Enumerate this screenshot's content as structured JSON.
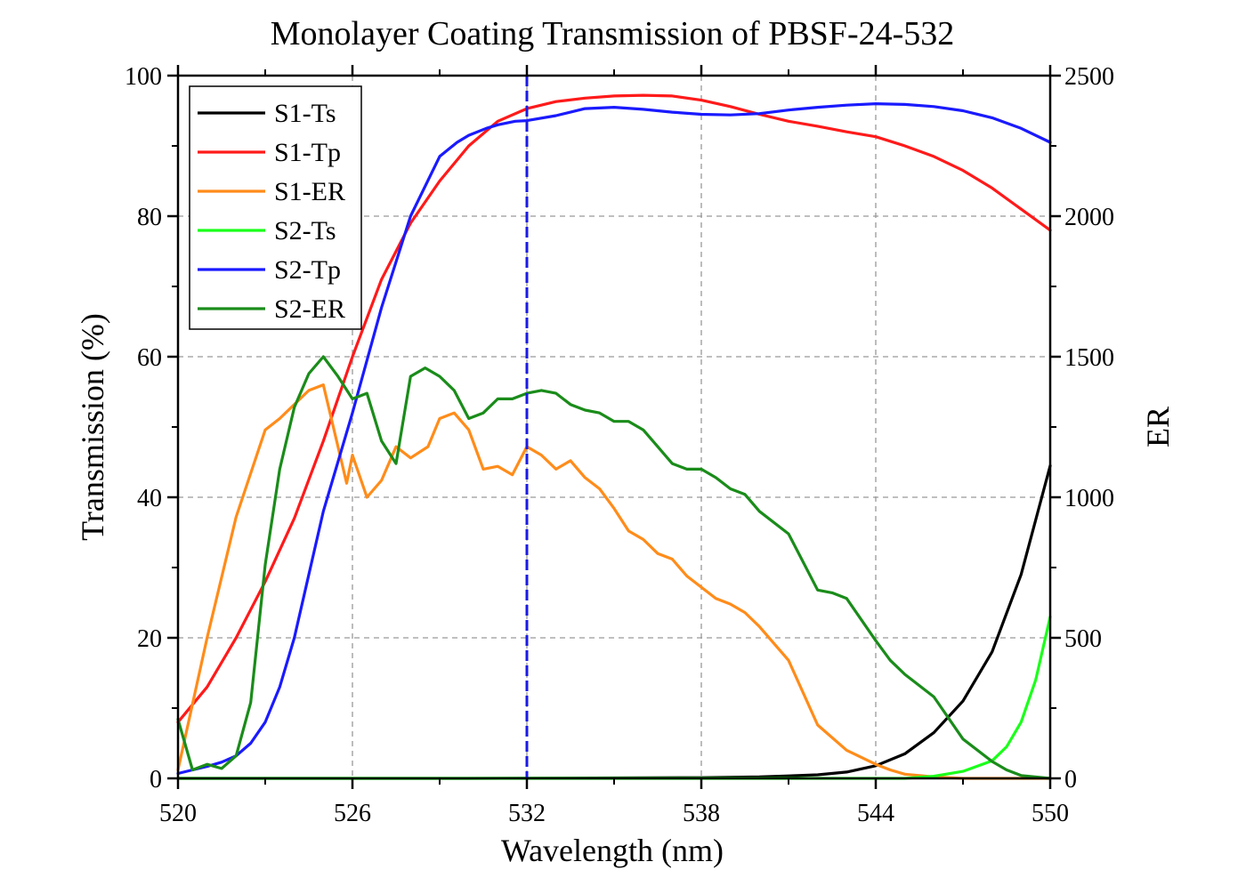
{
  "chart_data": {
    "type": "line",
    "title": "Monolayer Coating Transmission of PBSF-24-532",
    "xlabel": "Wavelength (nm)",
    "ylabel": "Transmission (%)",
    "y2label": "ER",
    "xlim": [
      520,
      550
    ],
    "ylim": [
      0,
      100
    ],
    "y2lim": [
      0,
      2500
    ],
    "xticks": [
      "520",
      "526",
      "532",
      "538",
      "544",
      "550"
    ],
    "yticks": [
      "0",
      "20",
      "40",
      "60",
      "80",
      "100"
    ],
    "y2ticks": [
      "0",
      "500",
      "1000",
      "1500",
      "2000",
      "2500"
    ],
    "grid": true,
    "legend_position": "top-left",
    "vline_x": 532,
    "vline_color": "#1a1ae6",
    "series": [
      {
        "name": "S1-Ts",
        "axis": "left",
        "color": "#000000",
        "x": [
          520,
          530,
          538,
          540,
          542,
          543,
          544,
          545,
          546,
          547,
          548,
          549,
          550
        ],
        "y": [
          0,
          0,
          0.1,
          0.2,
          0.5,
          0.9,
          1.8,
          3.5,
          6.5,
          11,
          18,
          29,
          44.5
        ]
      },
      {
        "name": "S1-Tp",
        "axis": "left",
        "color": "#ff1a1a",
        "x": [
          520,
          521,
          522,
          523,
          524,
          525,
          526,
          527,
          528,
          529,
          530,
          531,
          532,
          533,
          534,
          535,
          536,
          537,
          538,
          539,
          540,
          541,
          542,
          543,
          544,
          545,
          546,
          547,
          548,
          549,
          550
        ],
        "y": [
          8,
          13,
          20,
          28,
          37,
          48,
          60,
          71,
          79,
          85,
          90,
          93.5,
          95.3,
          96.3,
          96.8,
          97.1,
          97.2,
          97.1,
          96.5,
          95.6,
          94.5,
          93.5,
          92.8,
          92,
          91.3,
          90,
          88.5,
          86.5,
          84,
          81,
          78
        ]
      },
      {
        "name": "S1-ER",
        "axis": "right",
        "color": "#ff8c1a",
        "x": [
          520,
          521,
          522,
          523,
          523.5,
          524.5,
          525,
          525.8,
          526,
          526.5,
          527,
          527.5,
          528,
          528.6,
          529,
          529.5,
          530,
          530.5,
          531,
          531.5,
          532,
          532.5,
          533,
          533.5,
          534,
          534.5,
          535,
          535.5,
          536,
          536.5,
          537,
          537.5,
          538,
          538.5,
          539,
          539.5,
          540,
          541,
          542,
          543,
          544,
          544.5,
          545,
          546,
          547,
          548,
          550
        ],
        "y": [
          30,
          500,
          930,
          1240,
          1280,
          1380,
          1400,
          1050,
          1150,
          1000,
          1060,
          1180,
          1140,
          1180,
          1280,
          1300,
          1240,
          1100,
          1110,
          1080,
          1180,
          1150,
          1100,
          1130,
          1070,
          1030,
          960,
          880,
          850,
          800,
          780,
          720,
          680,
          640,
          620,
          590,
          540,
          420,
          190,
          100,
          50,
          30,
          15,
          5,
          0,
          0,
          0
        ]
      },
      {
        "name": "S2-Ts",
        "axis": "left",
        "color": "#1aff1a",
        "x": [
          520,
          542,
          545,
          546,
          547,
          548,
          548.5,
          549,
          549.5,
          550
        ],
        "y": [
          0,
          0,
          0,
          0.3,
          1,
          2.5,
          4.5,
          8,
          14,
          23
        ]
      },
      {
        "name": "S2-Tp",
        "axis": "left",
        "color": "#1a1aff",
        "x": [
          520,
          520.5,
          521,
          521.5,
          522,
          522.5,
          523,
          523.5,
          524,
          524.5,
          525,
          526,
          527,
          528,
          529,
          529.6,
          530,
          530.6,
          531,
          531.6,
          532,
          533,
          534,
          535,
          536,
          537,
          538,
          539,
          540,
          541,
          542,
          543,
          544,
          545,
          546,
          547,
          548,
          549,
          550
        ],
        "y": [
          0.7,
          1.2,
          1.7,
          2.3,
          3.2,
          5,
          8,
          13,
          20,
          29,
          38,
          52,
          67,
          80,
          88.5,
          90.5,
          91.5,
          92.5,
          93,
          93.5,
          93.6,
          94.3,
          95.3,
          95.5,
          95.2,
          94.8,
          94.5,
          94.4,
          94.6,
          95.1,
          95.5,
          95.8,
          96,
          95.9,
          95.6,
          95,
          94,
          92.5,
          90.5
        ]
      },
      {
        "name": "S2-ER",
        "axis": "right",
        "color": "#1a8c1a",
        "x": [
          520,
          520.5,
          521,
          521.5,
          522,
          522.5,
          523,
          523.5,
          524,
          524.5,
          525,
          525.5,
          526,
          526.5,
          527,
          527.5,
          528,
          528.5,
          529,
          529.5,
          530,
          530.5,
          531,
          531.5,
          532,
          532.5,
          533,
          533.5,
          534,
          534.5,
          535,
          535.5,
          536,
          536.5,
          537,
          537.5,
          538,
          538.5,
          539,
          539.5,
          540,
          541,
          542,
          542.5,
          543,
          544,
          544.5,
          545,
          546,
          547,
          548,
          548.5,
          549,
          550
        ],
        "y": [
          210,
          30,
          50,
          35,
          80,
          270,
          760,
          1100,
          1320,
          1440,
          1500,
          1430,
          1350,
          1370,
          1200,
          1120,
          1430,
          1460,
          1430,
          1380,
          1280,
          1300,
          1350,
          1350,
          1370,
          1380,
          1370,
          1330,
          1310,
          1300,
          1270,
          1270,
          1240,
          1180,
          1120,
          1100,
          1100,
          1070,
          1030,
          1010,
          950,
          870,
          670,
          660,
          640,
          490,
          420,
          370,
          290,
          140,
          60,
          30,
          10,
          0
        ]
      }
    ]
  }
}
